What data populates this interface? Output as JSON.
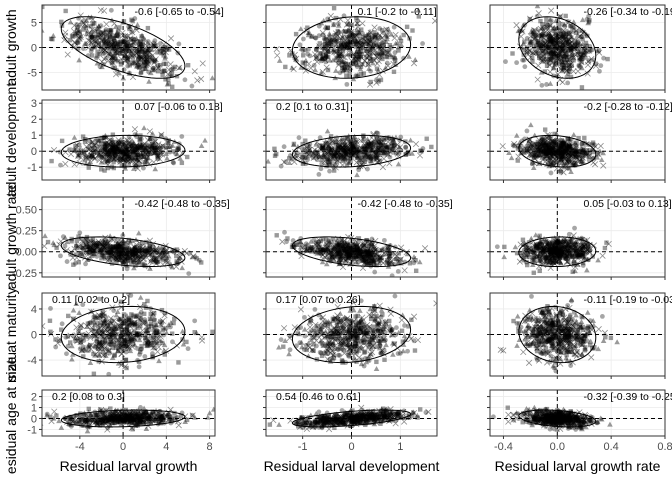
{
  "chart_data": {
    "type": "scatter",
    "columns": [
      {
        "xlabel": "Residual larval growth",
        "xlim": [
          -7.5,
          8.5
        ],
        "xticks": [
          -4,
          0,
          4,
          8
        ]
      },
      {
        "xlabel": "Residual larval development",
        "xlim": [
          -1.75,
          1.75
        ],
        "xticks": [
          -1,
          0,
          1
        ]
      },
      {
        "xlabel": "Residual larval growth rate",
        "xlim": [
          -0.5,
          0.8
        ],
        "xticks": [
          -0.4,
          0.0,
          0.4,
          0.8
        ]
      }
    ],
    "rows": [
      {
        "ylabel": "adult growth",
        "ylim": [
          -8.5,
          8.5
        ],
        "yticks": [
          -5,
          0,
          5
        ],
        "ytick_labels": [
          "-5",
          "0",
          "5"
        ]
      },
      {
        "ylabel": "adult development",
        "ylim": [
          -1.8,
          3.2
        ],
        "yticks": [
          -1,
          0,
          1,
          2,
          3
        ],
        "ytick_labels": [
          "-1",
          "0",
          "1",
          "2",
          "3"
        ]
      },
      {
        "ylabel": "adult growth rate",
        "ylim": [
          -0.3,
          0.65
        ],
        "yticks": [
          -0.25,
          0.0,
          0.25,
          0.5
        ],
        "ytick_labels": [
          "-0.25",
          "0.00",
          "0.25",
          "0.50"
        ]
      },
      {
        "ylabel": "size at maturity",
        "ylim": [
          -6.5,
          6.5
        ],
        "yticks": [
          -4,
          0,
          4
        ],
        "ytick_labels": [
          "-4",
          "0",
          "4"
        ]
      },
      {
        "ylabel": "esidual age at matu",
        "ylim": [
          -1.6,
          2.6
        ],
        "yticks": [
          -1,
          0,
          1,
          2
        ],
        "ytick_labels": [
          "-1",
          "0",
          "1",
          "2"
        ]
      }
    ],
    "annotations": [
      [
        "-0.6 [-0.65 to -0.54]",
        "0.1 [-0.2 to -0.11]",
        "-0.26 [-0.34 to -0.19]"
      ],
      [
        "0.07 [-0.06 to 0.18]",
        "0.2 [0.1 to 0.31]",
        "-0.2 [-0.28 to -0.12]"
      ],
      [
        "-0.42 [-0.48 to -0.35]",
        "-0.42 [-0.48 to -0.35]",
        "0.05 [-0.03 to 0.13]"
      ],
      [
        "0.11 [0.02 to 0.2]",
        "0.17 [0.07 to 0.26]",
        "-0.11 [-0.19 to -0.03]"
      ],
      [
        "0.2 [0.08 to 0.3]",
        "0.54 [0.46 to 0.61]",
        "-0.32 [-0.39 to -0.25]"
      ]
    ],
    "correlations": [
      [
        -0.6,
        0.1,
        -0.26
      ],
      [
        0.07,
        0.2,
        -0.2
      ],
      [
        -0.42,
        -0.42,
        0.05
      ],
      [
        0.11,
        0.17,
        -0.11
      ],
      [
        0.2,
        0.54,
        -0.32
      ]
    ],
    "x_spread": [
      {
        "center": 0.0,
        "sd": 2.6
      },
      {
        "center": 0.0,
        "sd": 0.55
      },
      {
        "center": 0.0,
        "sd": 0.13
      }
    ],
    "y_spread": [
      {
        "center": 0.0,
        "sd": 2.8
      },
      {
        "center": 0.0,
        "sd": 0.45
      },
      {
        "center": 0.0,
        "sd": 0.08
      },
      {
        "center": 0.0,
        "sd": 2.0
      },
      {
        "center": 0.0,
        "sd": 0.35
      }
    ],
    "reference_lines": {
      "x": 0,
      "y": 0
    },
    "marker_shapes": [
      "circle",
      "triangle",
      "square",
      "cross"
    ],
    "grid": true,
    "colors": {
      "points": "#000000",
      "panel_border": "#333333",
      "grid": "#ebebeb"
    }
  }
}
